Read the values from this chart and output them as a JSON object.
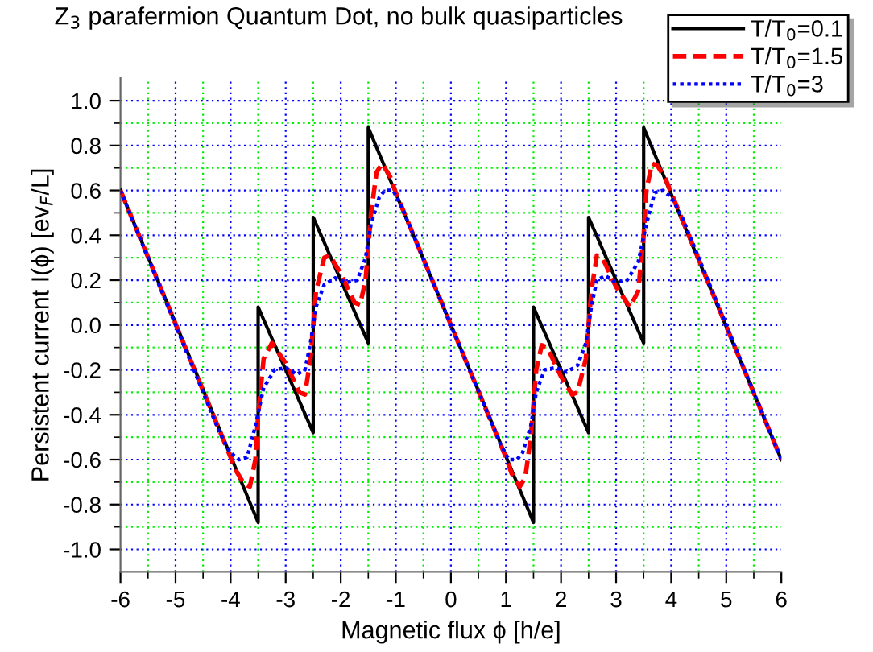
{
  "chart_data": {
    "type": "line",
    "title": "Z$_{3}$ parafermion Quantum Dot, no bulk quasiparticles",
    "xlabel": "Magnetic flux ϕ [h/e]",
    "ylabel": "Persistent current I(ϕ) [ev$_{F}$/L]",
    "xlim": [
      -6,
      6
    ],
    "ylim": [
      -1.1,
      1.1
    ],
    "xticks": [
      -6,
      {
        "value": -5.5,
        "label": null
      },
      -5,
      {
        "value": -4.5,
        "label": null
      },
      -4,
      {
        "value": -3.5,
        "label": null
      },
      -3,
      {
        "value": -2.5,
        "label": null
      },
      -2,
      {
        "value": -1.5,
        "label": null
      },
      -1,
      {
        "value": -0.5,
        "label": null
      },
      0,
      {
        "value": 0.5,
        "label": null
      },
      1,
      {
        "value": 1.5,
        "label": null
      },
      2,
      {
        "value": 2.5,
        "label": null
      },
      3,
      {
        "value": 3.5,
        "label": null
      },
      4,
      {
        "value": 4.5,
        "label": null
      },
      5,
      {
        "value": 5.5,
        "label": null
      },
      6
    ],
    "yticks": [
      {
        "value": -1.0,
        "label": "-1.0"
      },
      {
        "value": -0.9,
        "label": null
      },
      -0.8,
      {
        "value": -0.7,
        "label": null
      },
      -0.6,
      {
        "value": -0.5,
        "label": null
      },
      -0.4,
      {
        "value": -0.3,
        "label": null
      },
      -0.2,
      {
        "value": -0.1,
        "label": null
      },
      {
        "value": 0.0,
        "label": "0.0"
      },
      {
        "value": 0.1,
        "label": null
      },
      0.2,
      {
        "value": 0.3,
        "label": null
      },
      0.4,
      {
        "value": 0.5,
        "label": null
      },
      0.6,
      {
        "value": 0.7,
        "label": null
      },
      0.8,
      {
        "value": 0.9,
        "label": null
      },
      {
        "value": 1.0,
        "label": "1.0"
      }
    ],
    "grid": true,
    "legend": "top right",
    "series": [
      {
        "name": "T/T$_{0}$=0.1",
        "color": "#000000",
        "line_style": "solid",
        "x": [
          -6,
          -3.5,
          -3.5,
          -2.5,
          -2.5,
          -1.5,
          -1.5,
          1.5,
          1.5,
          2.5,
          2.5,
          3.5,
          3.5,
          6
        ],
        "values": [
          0.6,
          -0.88,
          0.08,
          -0.48,
          0.48,
          -0.08,
          0.88,
          -0.88,
          0.08,
          -0.48,
          0.48,
          -0.08,
          0.88,
          -0.6
        ]
      },
      {
        "name": "T/T$_{0}$=1.5",
        "color": "#ff0000",
        "line_style": "dashed",
        "x": [
          -6,
          -4.1,
          -3.9,
          -3.75,
          -3.65,
          -3.55,
          -3.5,
          -3.4,
          -3.25,
          -3.0,
          -2.75,
          -2.65,
          -2.55,
          -2.45,
          -2.3,
          -2.2,
          -2.0,
          -1.75,
          -1.65,
          -1.55,
          -1.45,
          -1.35,
          -1.25,
          -1.1,
          -1.0,
          0,
          1.0,
          1.1,
          1.25,
          1.35,
          1.45,
          1.55,
          1.65,
          1.75,
          2.0,
          2.2,
          2.3,
          2.45,
          2.55,
          2.65,
          2.75,
          3.0,
          3.25,
          3.4,
          3.5,
          3.55,
          3.65,
          3.75,
          3.9,
          4.1,
          6
        ],
        "values": [
          0.6,
          -0.53,
          -0.65,
          -0.71,
          -0.72,
          -0.6,
          -0.4,
          -0.15,
          -0.08,
          -0.17,
          -0.3,
          -0.31,
          -0.15,
          0.15,
          0.3,
          0.31,
          0.23,
          0.1,
          0.09,
          0.2,
          0.5,
          0.68,
          0.72,
          0.66,
          0.59,
          0,
          -0.59,
          -0.66,
          -0.72,
          -0.68,
          -0.5,
          -0.2,
          -0.09,
          -0.1,
          -0.23,
          -0.31,
          -0.3,
          -0.15,
          0.15,
          0.31,
          0.3,
          0.17,
          0.08,
          0.15,
          0.4,
          0.6,
          0.72,
          0.71,
          0.65,
          0.53,
          -0.6
        ]
      },
      {
        "name": "T/T$_{0}$=3",
        "color": "#0000ff",
        "line_style": "dotted",
        "x": [
          -6,
          -4.2,
          -4.0,
          -3.85,
          -3.7,
          -3.55,
          -3.4,
          -3.2,
          -3.0,
          -2.8,
          -2.65,
          -2.55,
          -2.45,
          -2.3,
          -2.1,
          -1.9,
          -1.7,
          -1.55,
          -1.45,
          -1.3,
          -1.2,
          -1.05,
          -0.9,
          0,
          0.9,
          1.05,
          1.2,
          1.3,
          1.45,
          1.55,
          1.7,
          1.9,
          2.1,
          2.3,
          2.45,
          2.55,
          2.65,
          2.8,
          3.0,
          3.2,
          3.4,
          3.55,
          3.7,
          3.85,
          4.0,
          4.2,
          6
        ],
        "values": [
          0.6,
          -0.48,
          -0.57,
          -0.6,
          -0.59,
          -0.45,
          -0.28,
          -0.2,
          -0.19,
          -0.22,
          -0.2,
          -0.08,
          0.08,
          0.18,
          0.21,
          0.19,
          0.2,
          0.3,
          0.45,
          0.57,
          0.6,
          0.6,
          0.53,
          0,
          -0.53,
          -0.6,
          -0.6,
          -0.57,
          -0.45,
          -0.3,
          -0.2,
          -0.19,
          -0.21,
          -0.18,
          -0.08,
          0.08,
          0.2,
          0.22,
          0.19,
          0.2,
          0.28,
          0.45,
          0.59,
          0.6,
          0.57,
          0.48,
          -0.6
        ]
      }
    ]
  }
}
